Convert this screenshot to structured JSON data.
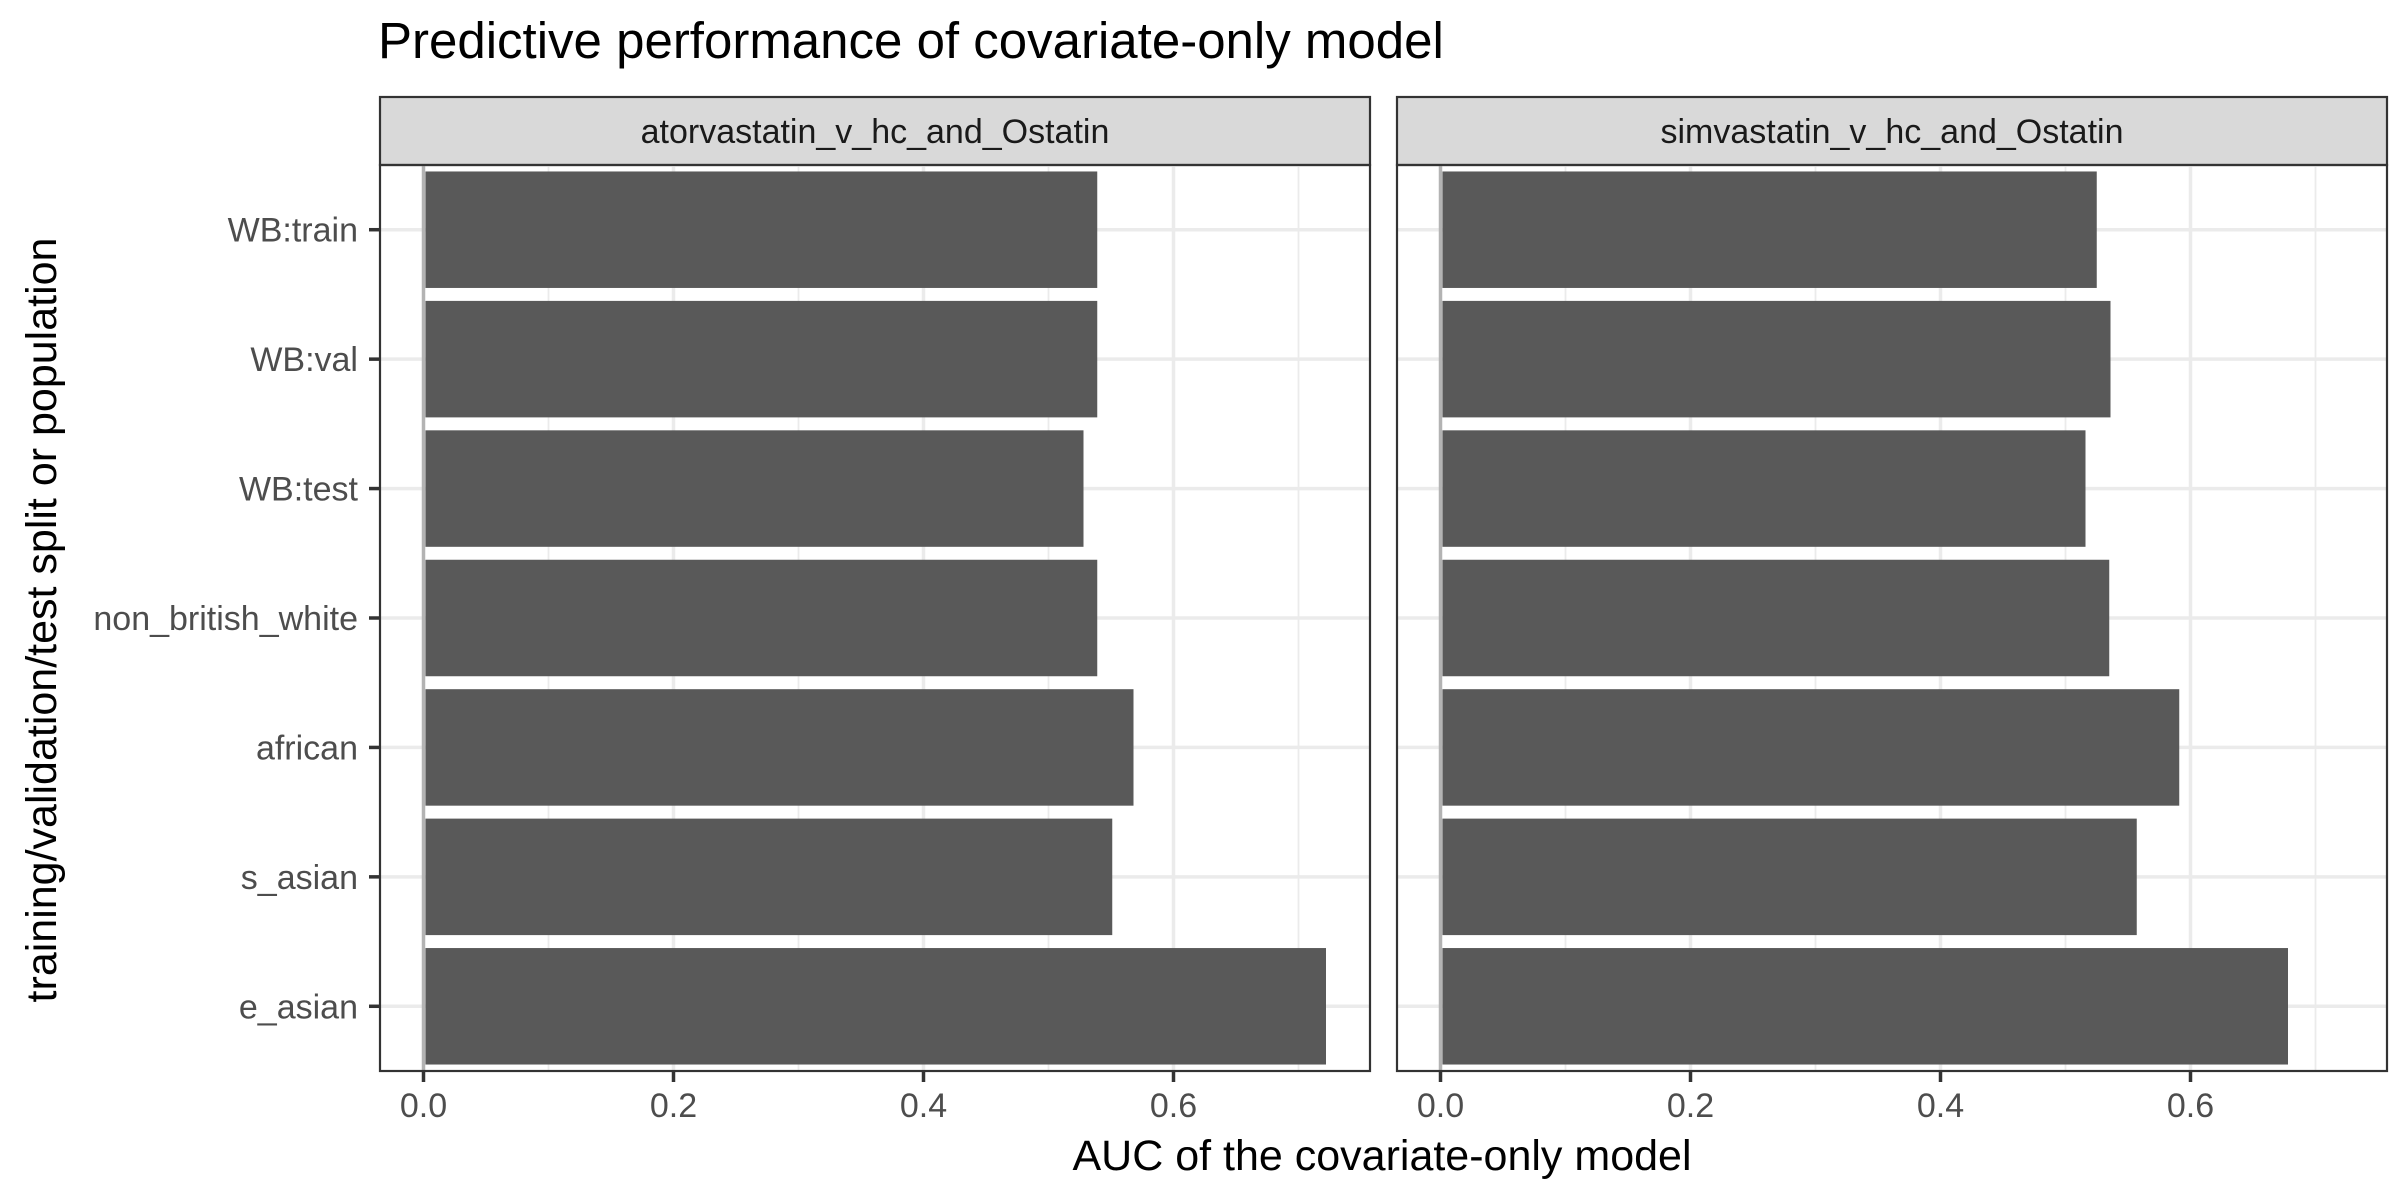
{
  "chart_data": {
    "type": "bar",
    "orientation": "horizontal",
    "title": "Predictive performance of covariate-only model",
    "xlabel": "AUC of the covariate-only model",
    "ylabel": "training/validation/test split or population",
    "categories": [
      "WB:train",
      "WB:val",
      "WB:test",
      "non_british_white",
      "african",
      "s_asian",
      "e_asian"
    ],
    "xlim": [
      0,
      0.75
    ],
    "x_ticks": [
      0.0,
      0.2,
      0.4,
      0.6
    ],
    "x_tick_labels": [
      "0.0",
      "0.2",
      "0.4",
      "0.6"
    ],
    "grid": true,
    "bar_color": "#595959",
    "panels": [
      {
        "name": "atorvastatin_v_hc_and_Ostatin",
        "values": [
          0.539,
          0.539,
          0.528,
          0.539,
          0.568,
          0.551,
          0.722
        ]
      },
      {
        "name": "simvastatin_v_hc_and_Ostatin",
        "values": [
          0.525,
          0.536,
          0.516,
          0.535,
          0.591,
          0.557,
          0.678
        ]
      }
    ]
  }
}
